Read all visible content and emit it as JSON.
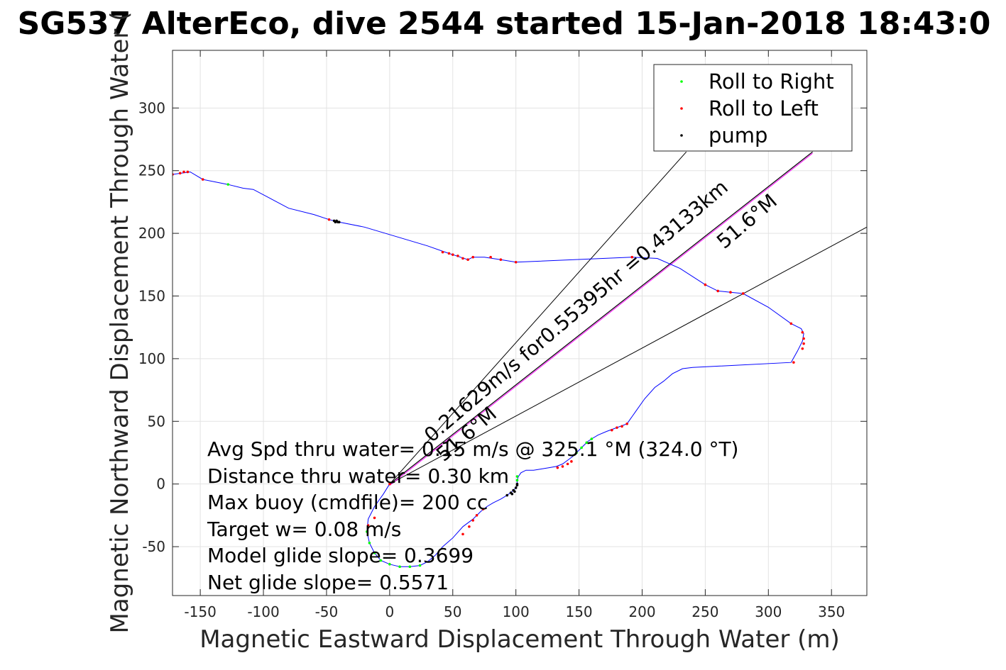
{
  "chart_data": {
    "type": "scatter",
    "title": "SG537 AlterEco, dive 2544 started 15-Jan-2018 18:43:0",
    "xlabel": "Magnetic Eastward Displacement Through Water (m)",
    "ylabel": "Magnetic Northward Displacement Through Water (",
    "xlim": [
      -172,
      378
    ],
    "ylim": [
      -89,
      346
    ],
    "xticks": [
      -150,
      -100,
      -50,
      0,
      50,
      100,
      150,
      200,
      250,
      300,
      350
    ],
    "yticks": [
      -50,
      0,
      50,
      100,
      150,
      200,
      250,
      300
    ],
    "grid": true,
    "legend_position": "top-right",
    "legend": [
      {
        "label": "Roll to Right",
        "color": "#00ff00"
      },
      {
        "label": "Roll to Left",
        "color": "#ff0000"
      },
      {
        "label": "pump",
        "color": "#000000"
      }
    ],
    "track_color": "#0000ff",
    "track": [
      [
        0,
        0
      ],
      [
        -5,
        -8
      ],
      [
        -12,
        -18
      ],
      [
        -17,
        -28
      ],
      [
        -18,
        -38
      ],
      [
        -16,
        -47
      ],
      [
        -12,
        -55
      ],
      [
        -7,
        -61
      ],
      [
        0,
        -64
      ],
      [
        8,
        -66
      ],
      [
        16,
        -66
      ],
      [
        24,
        -65
      ],
      [
        30,
        -62
      ],
      [
        36,
        -57
      ],
      [
        42,
        -50
      ],
      [
        50,
        -43
      ],
      [
        58,
        -34
      ],
      [
        66,
        -28
      ],
      [
        72,
        -22
      ],
      [
        77,
        -18
      ],
      [
        82,
        -15
      ],
      [
        88,
        -12
      ],
      [
        93,
        -9
      ],
      [
        97,
        -6
      ],
      [
        100,
        -3
      ],
      [
        101,
        0
      ],
      [
        101,
        3
      ],
      [
        102,
        6
      ],
      [
        104,
        9
      ],
      [
        108,
        11
      ],
      [
        114,
        11
      ],
      [
        120,
        12
      ],
      [
        126,
        13
      ],
      [
        132,
        14
      ],
      [
        137,
        16
      ],
      [
        141,
        19
      ],
      [
        145,
        22
      ],
      [
        149,
        26
      ],
      [
        153,
        30
      ],
      [
        157,
        34
      ],
      [
        160,
        36
      ],
      [
        165,
        39
      ],
      [
        172,
        42
      ],
      [
        180,
        45
      ],
      [
        188,
        48
      ],
      [
        195,
        58
      ],
      [
        202,
        68
      ],
      [
        210,
        77
      ],
      [
        217,
        82
      ],
      [
        224,
        88
      ],
      [
        232,
        92
      ],
      [
        240,
        93
      ],
      [
        318,
        97
      ],
      [
        323,
        106
      ],
      [
        327,
        114
      ],
      [
        328,
        120
      ],
      [
        326,
        124
      ],
      [
        318,
        128
      ],
      [
        300,
        141
      ],
      [
        280,
        152
      ],
      [
        270,
        153
      ],
      [
        260,
        154
      ],
      [
        250,
        159
      ],
      [
        230,
        172
      ],
      [
        212,
        180
      ],
      [
        192,
        181
      ],
      [
        100,
        177
      ],
      [
        88,
        179
      ],
      [
        75,
        181
      ],
      [
        66,
        181
      ],
      [
        62,
        179
      ],
      [
        56,
        181
      ],
      [
        50,
        183
      ],
      [
        44,
        185
      ],
      [
        30,
        190
      ],
      [
        10,
        196
      ],
      [
        -20,
        205
      ],
      [
        -40,
        209
      ],
      [
        -48,
        211
      ],
      [
        -60,
        215
      ],
      [
        -80,
        220
      ],
      [
        -108,
        235
      ],
      [
        -116,
        236
      ],
      [
        -128,
        239
      ],
      [
        -148,
        243
      ],
      [
        -158,
        249
      ],
      [
        -165,
        248
      ],
      [
        -172,
        247
      ]
    ],
    "roll_right_points": [
      [
        -18,
        -38
      ],
      [
        -16,
        -47
      ],
      [
        -12,
        -55
      ],
      [
        -7,
        -61
      ],
      [
        0,
        -64
      ],
      [
        8,
        -66
      ],
      [
        16,
        -66
      ],
      [
        24,
        -65
      ],
      [
        101,
        3
      ],
      [
        101,
        6
      ],
      [
        148,
        25
      ],
      [
        152,
        29
      ],
      [
        156,
        33
      ],
      [
        160,
        36
      ],
      [
        -128,
        239
      ]
    ],
    "roll_left_points": [
      [
        -172,
        247
      ],
      [
        -166,
        248
      ],
      [
        -163,
        249
      ],
      [
        -160,
        249
      ],
      [
        -148,
        243
      ],
      [
        -48,
        211
      ],
      [
        42,
        185
      ],
      [
        47,
        184
      ],
      [
        50,
        183
      ],
      [
        54,
        182
      ],
      [
        58,
        180
      ],
      [
        62,
        179
      ],
      [
        66,
        181
      ],
      [
        80,
        181
      ],
      [
        88,
        179
      ],
      [
        100,
        177
      ],
      [
        192,
        181
      ],
      [
        250,
        159
      ],
      [
        260,
        154
      ],
      [
        270,
        153
      ],
      [
        280,
        152
      ],
      [
        318,
        128
      ],
      [
        327,
        121
      ],
      [
        328,
        116
      ],
      [
        328,
        112
      ],
      [
        327,
        108
      ],
      [
        320,
        97
      ],
      [
        176,
        43
      ],
      [
        180,
        45
      ],
      [
        184,
        46
      ],
      [
        188,
        48
      ],
      [
        133,
        13
      ],
      [
        137,
        14
      ],
      [
        141,
        16
      ],
      [
        144,
        18
      ],
      [
        74,
        -20
      ],
      [
        69,
        -25
      ],
      [
        66,
        -29
      ],
      [
        63,
        -34
      ],
      [
        58,
        -40
      ],
      [
        -12,
        -27
      ],
      [
        -17,
        -33
      ],
      [
        0,
        0
      ]
    ],
    "pump_points": [
      [
        -40,
        209
      ],
      [
        -42,
        210
      ],
      [
        -44,
        210
      ],
      [
        -43,
        209
      ],
      [
        -41,
        209
      ],
      [
        93,
        -9
      ],
      [
        96,
        -7
      ],
      [
        98,
        -5
      ],
      [
        100,
        -3
      ],
      [
        101,
        -1
      ],
      [
        101,
        0
      ],
      [
        99,
        -6
      ],
      [
        97,
        -8
      ]
    ],
    "heading_line": {
      "label": "0.21629m/s for0.55395hr =0.43133km",
      "heading": "51.6°M",
      "color": "#ff00ff"
    },
    "heading_line_end": [
      335,
      265
    ],
    "heading_labels": [
      "0.21629m/s for0.55395hr =0.43133km",
      "51.6°M",
      "51.6°M"
    ],
    "cone_lines": [
      {
        "end": [
          235,
          265
        ]
      },
      {
        "end": [
          378,
          205
        ]
      }
    ],
    "annotations": [
      "Avg Spd thru water= 0.15 m/s @ 325.1 °M (324.0 °T)",
      "Distance thru water=  0.30 km",
      "Max buoy (cmdfile)= 200 cc",
      "Target w= 0.08 m/s",
      "Model glide slope= 0.3699",
      "Net glide slope= 0.5571"
    ]
  }
}
